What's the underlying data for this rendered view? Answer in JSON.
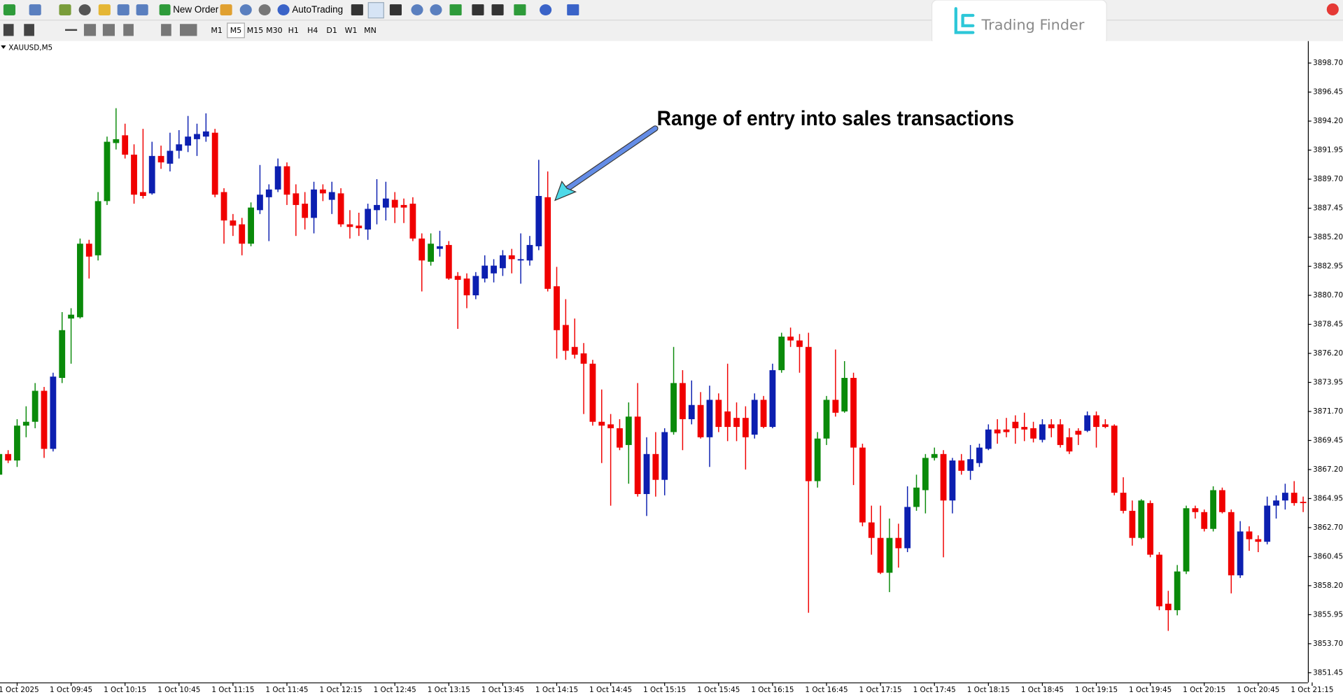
{
  "toolbar": {
    "buttons": [
      "New Order",
      "AutoTrading"
    ],
    "timeframes": [
      "M1",
      "M5",
      "M15",
      "M30",
      "H1",
      "H4",
      "D1",
      "W1",
      "MN"
    ]
  },
  "logo": "Trading Finder",
  "chart_data": {
    "type": "candlestick",
    "title": "XAUUSD,M5",
    "annotation": "Range of entry into sales transactions",
    "open": [
      3866.8,
      3868.4,
      3867.9,
      3870.6,
      3870.9,
      3873.3,
      3868.8,
      3874.3,
      3878.9,
      3879.0,
      3884.7,
      3883.8,
      3888.0,
      3892.5,
      3893.1,
      3891.6,
      3888.7,
      3888.6,
      3891.5,
      3890.9,
      3891.9,
      3892.3,
      3892.8,
      3893.0,
      3893.3,
      3888.7,
      3886.5,
      3886.2,
      3884.7,
      3887.3,
      3888.3,
      3888.9,
      3890.7,
      3888.6,
      3887.8,
      3886.7,
      3888.9,
      3888.1,
      3888.6,
      3886.2,
      3886.1,
      3885.8,
      3887.3,
      3887.5,
      3888.1,
      3887.7,
      3887.8,
      3885.1,
      3883.3,
      3884.3,
      3884.6,
      3882.2,
      3882.0,
      3880.7,
      3882.0,
      3882.4,
      3882.8,
      3883.8,
      3883.4,
      3883.4,
      3884.5,
      3888.3,
      3881.4,
      3878.4,
      3876.7,
      3876.2,
      3875.4,
      3870.9,
      3870.7,
      3870.4,
      3869.1,
      3871.3,
      3865.3,
      3868.4,
      3866.4,
      3870.1,
      3873.9,
      3871.1,
      3872.2,
      3869.7,
      3872.6,
      3871.7,
      3871.2,
      3871.2,
      3869.9,
      3872.6,
      3870.5,
      3874.9,
      3877.5,
      3877.2,
      3876.7,
      3866.3,
      3869.6,
      3872.6,
      3871.7,
      3874.3,
      3868.9,
      3863.1,
      3861.9,
      3859.2,
      3861.9,
      3861.1,
      3864.3,
      3865.6,
      3868.1,
      3868.4,
      3864.8,
      3867.9,
      3867.1,
      3867.7,
      3868.8,
      3870.3,
      3870.3,
      3870.9,
      3870.5,
      3870.4,
      3869.5,
      3870.7,
      3870.7,
      3869.7,
      3870.2,
      3870.2,
      3871.4,
      3870.7,
      3870.6,
      3865.4,
      3864.0,
      3861.9,
      3864.6,
      3860.6,
      3856.8,
      3856.3,
      3859.3,
      3864.2,
      3863.9,
      3862.6,
      3865.6,
      3863.9,
      3859.0,
      3862.4,
      3861.8,
      3861.6,
      3864.4,
      3864.8,
      3865.4,
      3864.7
    ],
    "high": [
      3868.7,
      3868.7,
      3871.1,
      3872.1,
      3873.9,
      3873.6,
      3874.7,
      3879.4,
      3879.7,
      3885.1,
      3885.0,
      3888.7,
      3893.0,
      3895.2,
      3894.0,
      3892.4,
      3893.6,
      3892.6,
      3892.3,
      3893.3,
      3893.5,
      3894.6,
      3894.0,
      3894.8,
      3893.6,
      3889.0,
      3887.0,
      3886.7,
      3887.9,
      3890.8,
      3889.3,
      3891.3,
      3891.0,
      3889.3,
      3888.7,
      3889.5,
      3889.3,
      3889.5,
      3889.0,
      3887.3,
      3887.1,
      3887.8,
      3889.7,
      3889.5,
      3888.7,
      3888.2,
      3888.3,
      3885.5,
      3885.5,
      3885.7,
      3884.9,
      3882.5,
      3882.4,
      3882.5,
      3883.8,
      3883.5,
      3884.2,
      3884.3,
      3885.5,
      3885.3,
      3891.2,
      3890.3,
      3882.9,
      3880.4,
      3878.9,
      3877.0,
      3875.7,
      3873.4,
      3871.5,
      3871.1,
      3872.4,
      3873.9,
      3869.7,
      3870.1,
      3870.4,
      3876.7,
      3874.9,
      3874.1,
      3873.2,
      3873.7,
      3873.1,
      3875.4,
      3872.4,
      3872.1,
      3873.1,
      3872.9,
      3875.4,
      3877.8,
      3878.2,
      3877.7,
      3877.8,
      3870.1,
      3872.9,
      3876.5,
      3875.6,
      3874.7,
      3869.2,
      3864.4,
      3864.4,
      3863.4,
      3863.0,
      3865.9,
      3866.8,
      3868.4,
      3868.9,
      3868.7,
      3868.1,
      3868.4,
      3869.1,
      3869.2,
      3870.7,
      3871.1,
      3871.2,
      3871.4,
      3871.6,
      3870.9,
      3871.1,
      3871.1,
      3871.1,
      3870.4,
      3870.4,
      3871.7,
      3871.7,
      3871.1,
      3870.7,
      3866.6,
      3864.8,
      3864.9,
      3864.8,
      3860.8,
      3857.8,
      3859.8,
      3864.4,
      3864.4,
      3864.1,
      3865.9,
      3865.8,
      3864.1,
      3863.2,
      3862.8,
      3862.1,
      3865.1,
      3865.2,
      3866.1,
      3866.3,
      3865.1
    ],
    "low": [
      3866.6,
      3867.7,
      3867.4,
      3869.7,
      3870.4,
      3868.1,
      3868.6,
      3873.9,
      3875.4,
      3878.9,
      3882.0,
      3883.4,
      3887.7,
      3892.0,
      3891.3,
      3887.8,
      3888.2,
      3888.5,
      3890.5,
      3890.3,
      3891.3,
      3891.8,
      3891.5,
      3892.6,
      3888.3,
      3884.7,
      3885.3,
      3883.8,
      3884.5,
      3887.0,
      3884.9,
      3888.7,
      3887.7,
      3885.3,
      3885.8,
      3885.5,
      3888.0,
      3887.0,
      3886.0,
      3885.1,
      3885.3,
      3885.0,
      3886.2,
      3886.5,
      3886.3,
      3886.3,
      3884.9,
      3881.0,
      3883.0,
      3883.7,
      3881.9,
      3878.1,
      3879.7,
      3880.4,
      3881.7,
      3881.7,
      3882.2,
      3882.4,
      3881.6,
      3883.0,
      3884.2,
      3881.0,
      3875.8,
      3875.7,
      3875.8,
      3871.5,
      3870.6,
      3867.7,
      3864.4,
      3868.7,
      3866.1,
      3865.1,
      3863.6,
      3865.1,
      3865.2,
      3869.9,
      3868.7,
      3870.7,
      3869.6,
      3867.4,
      3870.1,
      3869.4,
      3869.4,
      3867.2,
      3869.6,
      3870.4,
      3870.4,
      3874.7,
      3876.7,
      3874.7,
      3856.1,
      3865.8,
      3869.1,
      3871.3,
      3871.6,
      3866.0,
      3862.8,
      3860.6,
      3859.1,
      3857.7,
      3859.6,
      3860.8,
      3864.0,
      3863.8,
      3867.9,
      3860.4,
      3863.8,
      3866.8,
      3866.4,
      3867.4,
      3868.7,
      3869.2,
      3869.7,
      3869.2,
      3869.4,
      3869.3,
      3869.3,
      3869.7,
      3868.9,
      3868.4,
      3869.1,
      3870.1,
      3868.9,
      3870.4,
      3865.2,
      3863.8,
      3861.3,
      3861.8,
      3860.4,
      3856.3,
      3854.7,
      3855.9,
      3859.1,
      3863.4,
      3862.4,
      3862.4,
      3863.8,
      3857.6,
      3858.8,
      3860.9,
      3860.8,
      3861.4,
      3863.4,
      3864.1,
      3864.4,
      3863.9
    ],
    "close": [
      3868.4,
      3867.9,
      3870.6,
      3870.9,
      3873.3,
      3868.8,
      3874.4,
      3878.0,
      3879.2,
      3884.7,
      3883.7,
      3888.0,
      3892.6,
      3892.8,
      3891.6,
      3888.5,
      3888.4,
      3891.5,
      3891.0,
      3891.9,
      3892.4,
      3893.0,
      3893.2,
      3893.4,
      3888.5,
      3886.5,
      3886.1,
      3884.7,
      3887.5,
      3888.5,
      3888.9,
      3890.7,
      3888.5,
      3887.7,
      3886.7,
      3888.9,
      3888.6,
      3888.7,
      3886.2,
      3886.0,
      3885.9,
      3887.4,
      3887.7,
      3888.2,
      3887.5,
      3887.5,
      3885.1,
      3883.4,
      3884.7,
      3884.5,
      3882.0,
      3881.9,
      3880.7,
      3882.2,
      3883.0,
      3883.0,
      3883.8,
      3883.5,
      3883.5,
      3884.6,
      3888.4,
      3881.2,
      3878.0,
      3876.4,
      3876.1,
      3875.4,
      3870.9,
      3870.6,
      3870.4,
      3868.9,
      3871.3,
      3865.3,
      3868.4,
      3866.4,
      3870.1,
      3873.9,
      3871.1,
      3872.2,
      3869.7,
      3872.6,
      3870.5,
      3870.5,
      3870.5,
      3869.7,
      3872.6,
      3870.5,
      3874.9,
      3877.5,
      3877.2,
      3876.7,
      3866.3,
      3869.6,
      3872.6,
      3871.6,
      3874.3,
      3868.9,
      3863.1,
      3861.9,
      3859.2,
      3861.9,
      3861.1,
      3864.3,
      3865.8,
      3868.1,
      3868.4,
      3864.8,
      3867.9,
      3867.1,
      3868.0,
      3868.9,
      3870.3,
      3870.0,
      3870.1,
      3870.4,
      3870.3,
      3869.6,
      3870.7,
      3870.4,
      3869.1,
      3868.6,
      3869.9,
      3871.4,
      3870.5,
      3870.5,
      3865.4,
      3864.0,
      3861.9,
      3864.8,
      3860.6,
      3856.6,
      3856.3,
      3859.3,
      3864.2,
      3863.9,
      3862.6,
      3865.6,
      3863.9,
      3859.0,
      3862.4,
      3861.8,
      3861.6,
      3864.4,
      3864.8,
      3865.4,
      3864.6,
      3864.6
    ],
    "colors": [
      "#0a8a0a",
      "#f00000",
      "#0a8a0a",
      "#0a8a0a",
      "#0a8a0a",
      "#f00000",
      "#0c1fb0",
      "#0a8a0a",
      "#0a8a0a",
      "#0a8a0a",
      "#f00000",
      "#0a8a0a",
      "#0a8a0a",
      "#0a8a0a",
      "#f00000",
      "#f00000",
      "#f00000",
      "#0c1fb0",
      "#f00000",
      "#0c1fb0",
      "#0c1fb0",
      "#0c1fb0",
      "#0c1fb0",
      "#0c1fb0",
      "#f00000",
      "#f00000",
      "#f00000",
      "#f00000",
      "#0a8a0a",
      "#0c1fb0",
      "#0c1fb0",
      "#0c1fb0",
      "#f00000",
      "#f00000",
      "#f00000",
      "#0c1fb0",
      "#f00000",
      "#0c1fb0",
      "#f00000",
      "#f00000",
      "#f00000",
      "#0c1fb0",
      "#0c1fb0",
      "#0c1fb0",
      "#f00000",
      "#f00000",
      "#f00000",
      "#f00000",
      "#0a8a0a",
      "#0c1fb0",
      "#f00000",
      "#f00000",
      "#f00000",
      "#0c1fb0",
      "#0c1fb0",
      "#0c1fb0",
      "#0c1fb0",
      "#f00000",
      "#0c1fb0",
      "#0c1fb0",
      "#0c1fb0",
      "#f00000",
      "#f00000",
      "#f00000",
      "#f00000",
      "#f00000",
      "#f00000",
      "#f00000",
      "#f00000",
      "#f00000",
      "#0a8a0a",
      "#f00000",
      "#0c1fb0",
      "#f00000",
      "#0c1fb0",
      "#0a8a0a",
      "#f00000",
      "#0c1fb0",
      "#f00000",
      "#0c1fb0",
      "#f00000",
      "#f00000",
      "#f00000",
      "#f00000",
      "#0c1fb0",
      "#f00000",
      "#0c1fb0",
      "#0a8a0a",
      "#f00000",
      "#f00000",
      "#f00000",
      "#0a8a0a",
      "#0a8a0a",
      "#f00000",
      "#0a8a0a",
      "#f00000",
      "#f00000",
      "#f00000",
      "#f00000",
      "#0a8a0a",
      "#f00000",
      "#0c1fb0",
      "#0a8a0a",
      "#0a8a0a",
      "#0a8a0a",
      "#f00000",
      "#0c1fb0",
      "#f00000",
      "#0c1fb0",
      "#0c1fb0",
      "#0c1fb0",
      "#f00000",
      "#f00000",
      "#f00000",
      "#f00000",
      "#f00000",
      "#0c1fb0",
      "#f00000",
      "#f00000",
      "#f00000",
      "#f00000",
      "#0c1fb0",
      "#f00000",
      "#f00000",
      "#f00000",
      "#f00000",
      "#f00000",
      "#0a8a0a",
      "#f00000",
      "#f00000",
      "#f00000",
      "#0a8a0a",
      "#0a8a0a",
      "#f00000",
      "#f00000",
      "#0a8a0a",
      "#f00000",
      "#f00000",
      "#0c1fb0",
      "#f00000",
      "#f00000",
      "#0c1fb0",
      "#0c1fb0",
      "#0c1fb0",
      "#f00000",
      "#f00000"
    ],
    "xlim": [
      0,
      146
    ],
    "xticks": [
      {
        "value": 2,
        "label": "1 Oct 2025"
      },
      {
        "value": 8,
        "label": "1 Oct 09:45"
      },
      {
        "value": 14,
        "label": "1 Oct 10:15"
      },
      {
        "value": 20,
        "label": "1 Oct 10:45"
      },
      {
        "value": 26,
        "label": "1 Oct 11:15"
      },
      {
        "value": 32,
        "label": "1 Oct 11:45"
      },
      {
        "value": 38,
        "label": "1 Oct 12:15"
      },
      {
        "value": 44,
        "label": "1 Oct 12:45"
      },
      {
        "value": 50,
        "label": "1 Oct 13:15"
      },
      {
        "value": 56,
        "label": "1 Oct 13:45"
      },
      {
        "value": 62,
        "label": "1 Oct 14:15"
      },
      {
        "value": 68,
        "label": "1 Oct 14:45"
      },
      {
        "value": 74,
        "label": "1 Oct 15:15"
      },
      {
        "value": 80,
        "label": "1 Oct 15:45"
      },
      {
        "value": 86,
        "label": "1 Oct 16:15"
      },
      {
        "value": 92,
        "label": "1 Oct 16:45"
      },
      {
        "value": 98,
        "label": "1 Oct 17:15"
      },
      {
        "value": 104,
        "label": "1 Oct 17:45"
      },
      {
        "value": 110,
        "label": "1 Oct 18:15"
      },
      {
        "value": 116,
        "label": "1 Oct 18:45"
      },
      {
        "value": 122,
        "label": "1 Oct 19:15"
      },
      {
        "value": 128,
        "label": "1 Oct 19:45"
      },
      {
        "value": 134,
        "label": "1 Oct 20:15"
      },
      {
        "value": 140,
        "label": "1 Oct 20:45"
      },
      {
        "value": 146,
        "label": "1 Oct 21:15"
      }
    ],
    "ylim": [
      3850.7,
      3900.4
    ],
    "yticks": [
      {
        "value": 3898.7,
        "label": "3898.70"
      },
      3896.45,
      {
        "value": 3894.2,
        "label": "3894.20"
      },
      3891.95,
      {
        "value": 3889.7,
        "label": "3889.70"
      },
      3887.45,
      {
        "value": 3885.2,
        "label": "3885.20"
      },
      3882.95,
      {
        "value": 3880.7,
        "label": "3880.70"
      },
      3878.45,
      {
        "value": 3876.2,
        "label": "3876.20"
      },
      3873.95,
      {
        "value": 3871.7,
        "label": "3871.70"
      },
      3869.45,
      {
        "value": 3867.2,
        "label": "3867.20"
      },
      3864.95,
      {
        "value": 3862.7,
        "label": "3862.70"
      },
      3860.45,
      {
        "value": 3858.2,
        "label": "3858.20"
      },
      3855.95,
      {
        "value": 3853.7,
        "label": "3853.70"
      },
      3851.45
    ],
    "grid": false
  }
}
